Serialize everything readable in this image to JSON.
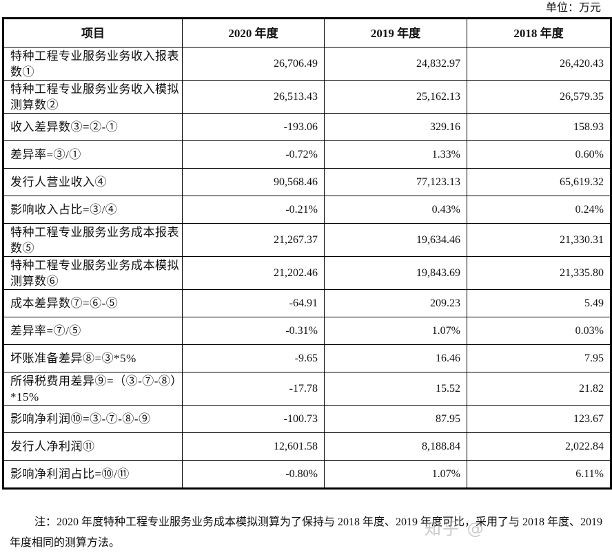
{
  "unit_label": "单位：万元",
  "table": {
    "headers": [
      "项目",
      "2020 年度",
      "2019 年度",
      "2018 年度"
    ],
    "rows": [
      {
        "label": "特种工程专业服务业务收入报表数①",
        "lines": 2,
        "v2020": "26,706.49",
        "v2019": "24,832.97",
        "v2018": "26,420.43"
      },
      {
        "label": "特种工程专业服务业务收入模拟测算数②",
        "lines": 2,
        "v2020": "26,513.43",
        "v2019": "25,162.13",
        "v2018": "26,579.35"
      },
      {
        "label": "收入差异数③=②-①",
        "lines": 1,
        "v2020": "-193.06",
        "v2019": "329.16",
        "v2018": "158.93"
      },
      {
        "label": "差异率=③/①",
        "lines": 1,
        "v2020": "-0.72%",
        "v2019": "1.33%",
        "v2018": "0.60%"
      },
      {
        "label": "发行人营业收入④",
        "lines": 1,
        "v2020": "90,568.46",
        "v2019": "77,123.13",
        "v2018": "65,619.32"
      },
      {
        "label": "影响收入占比=③/④",
        "lines": 1,
        "v2020": "-0.21%",
        "v2019": "0.43%",
        "v2018": "0.24%"
      },
      {
        "label": "特种工程专业服务业务成本报表数⑤",
        "lines": 2,
        "v2020": "21,267.37",
        "v2019": "19,634.46",
        "v2018": "21,330.31"
      },
      {
        "label": "特种工程专业服务业务成本模拟测算数⑥",
        "lines": 2,
        "v2020": "21,202.46",
        "v2019": "19,843.69",
        "v2018": "21,335.80"
      },
      {
        "label": "成本差异数⑦=⑥-⑤",
        "lines": 1,
        "v2020": "-64.91",
        "v2019": "209.23",
        "v2018": "5.49"
      },
      {
        "label": "差异率=⑦/⑤",
        "lines": 1,
        "v2020": "-0.31%",
        "v2019": "1.07%",
        "v2018": "0.03%"
      },
      {
        "label": "坏账准备差异⑧=③*5%",
        "lines": 1,
        "v2020": "-9.65",
        "v2019": "16.46",
        "v2018": "7.95"
      },
      {
        "label": "所得税费用差异⑨=（③-⑦-⑧）*15%",
        "lines": 2,
        "v2020": "-17.78",
        "v2019": "15.52",
        "v2018": "21.82"
      },
      {
        "label": "影响净利润⑩=③-⑦-⑧-⑨",
        "lines": 1,
        "v2020": "-100.73",
        "v2019": "87.95",
        "v2018": "123.67"
      },
      {
        "label": "发行人净利润⑪",
        "lines": 1,
        "v2020": "12,601.58",
        "v2019": "8,188.84",
        "v2018": "2,022.84"
      },
      {
        "label": "影响净利润占比=⑩/⑪",
        "lines": 1,
        "v2020": "-0.80%",
        "v2019": "1.07%",
        "v2018": "6.11%"
      }
    ]
  },
  "note": "注：2020 年度特种工程专业服务业务成本模拟测算为了保持与 2018 年度、2019 年度可比，采用了与 2018 年度、2019 年度相同的测算方法。",
  "watermark": "知乎 @"
}
